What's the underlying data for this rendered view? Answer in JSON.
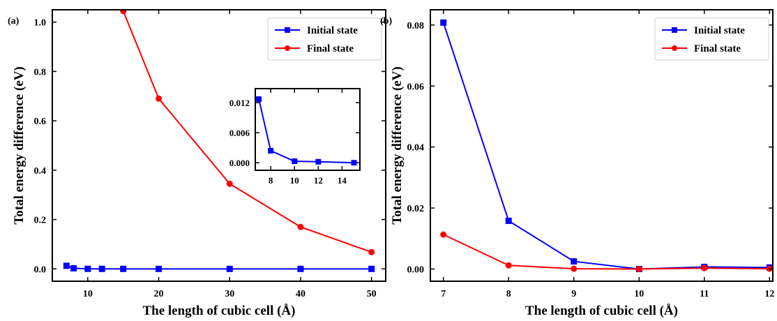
{
  "chart_data": [
    {
      "panel_label": "(a)",
      "type": "line",
      "xlabel": "The length of cubic cell (Å)",
      "ylabel": "Total energy difference (eV)",
      "xlim": [
        5,
        52
      ],
      "ylim": [
        -0.05,
        1.05
      ],
      "xticks": [
        10,
        20,
        30,
        40,
        50
      ],
      "yticks": [
        0.0,
        0.2,
        0.4,
        0.6,
        0.8,
        1.0
      ],
      "ytick_labels": [
        "0.0",
        "0.2",
        "0.4",
        "0.6",
        "0.8",
        "1.0"
      ],
      "legend": "top-right",
      "series": [
        {
          "name": "Initial state",
          "color": "#0000ff",
          "marker": "square",
          "x": [
            7,
            8,
            10,
            12,
            15,
            20,
            30,
            40,
            50
          ],
          "y": [
            0.0125,
            0.0025,
            0.0002,
            0.0001,
            0.0,
            0.0,
            0.0,
            0.0,
            0.0
          ]
        },
        {
          "name": "Final state",
          "color": "#ff0000",
          "marker": "circle",
          "x": [
            15,
            20,
            30,
            40,
            50
          ],
          "y": [
            1.045,
            0.69,
            0.345,
            0.17,
            0.068
          ]
        }
      ],
      "inset": {
        "xlim": [
          6.7,
          15.5
        ],
        "ylim": [
          -0.0015,
          0.0148
        ],
        "xticks": [
          8,
          10,
          12,
          14
        ],
        "yticks": [
          0.0,
          0.006,
          0.012
        ],
        "ytick_labels": [
          "0.000",
          "0.006",
          "0.012"
        ],
        "series": [
          {
            "name": "Initial state",
            "color": "#0000ff",
            "marker": "square",
            "x": [
              7,
              8,
              10,
              12,
              15
            ],
            "y": [
              0.0127,
              0.0024,
              0.0003,
              0.0002,
              0.0
            ]
          }
        ]
      }
    },
    {
      "panel_label": "(b)",
      "type": "line",
      "xlabel": "The length of cubic cell (Å)",
      "ylabel": "Total energy difference (eV)",
      "xlim": [
        6.8,
        12.05
      ],
      "ylim": [
        -0.004,
        0.085
      ],
      "xticks": [
        7,
        8,
        9,
        10,
        11,
        12
      ],
      "yticks": [
        0.0,
        0.02,
        0.04,
        0.06,
        0.08
      ],
      "ytick_labels": [
        "0.00",
        "0.02",
        "0.04",
        "0.06",
        "0.08"
      ],
      "legend": "top-right",
      "series": [
        {
          "name": "Initial state",
          "color": "#0000ff",
          "marker": "square",
          "x": [
            7,
            8,
            9,
            10,
            11,
            12
          ],
          "y": [
            0.0808,
            0.0158,
            0.0025,
            0.0,
            0.0007,
            0.0005
          ]
        },
        {
          "name": "Final state",
          "color": "#ff0000",
          "marker": "circle",
          "x": [
            7,
            8,
            9,
            10,
            11,
            12
          ],
          "y": [
            0.0113,
            0.0012,
            0.0001,
            0.0,
            0.0003,
            0.0001
          ]
        }
      ]
    }
  ]
}
